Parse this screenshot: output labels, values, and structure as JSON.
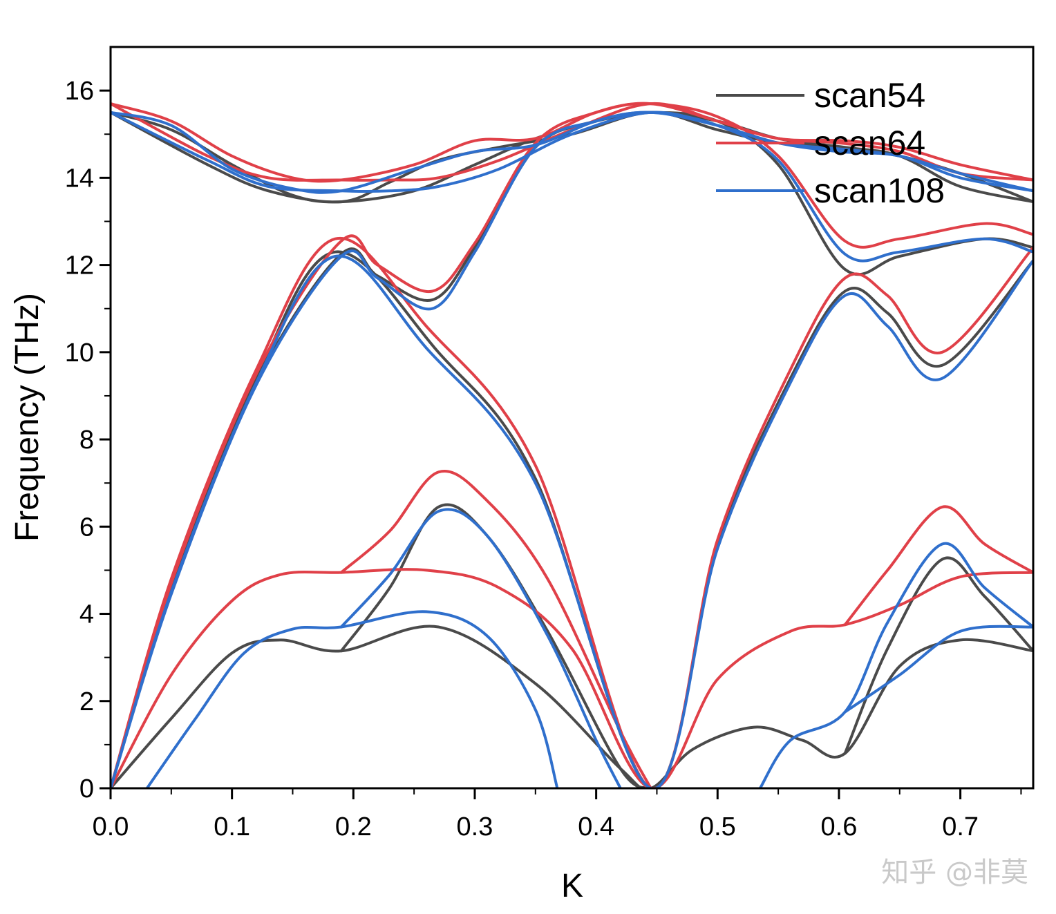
{
  "chart_data": {
    "type": "line",
    "title": "",
    "xlabel": "K",
    "ylabel": "Frequency (THz)",
    "xlim": [
      0,
      0.76
    ],
    "ylim": [
      0,
      17
    ],
    "xticks": [
      "0.0",
      "0.1",
      "0.2",
      "0.3",
      "0.4",
      "0.5",
      "0.6",
      "0.7"
    ],
    "yticks": [
      "0",
      "2",
      "4",
      "6",
      "8",
      "10",
      "12",
      "14",
      "16"
    ],
    "legend_position": "top-right",
    "colors": {
      "scan54": "#4a4a4a",
      "scan64": "#e04048",
      "scan108": "#2f6fcc"
    },
    "series": [
      {
        "name": "scan54",
        "bands": [
          [
            [
              0,
              0
            ],
            [
              0.05,
              1.6
            ],
            [
              0.1,
              3.1
            ],
            [
              0.14,
              3.4
            ],
            [
              0.19,
              3.15
            ],
            [
              0.27,
              3.7
            ],
            [
              0.35,
              2.4
            ],
            [
              0.42,
              0.45
            ],
            [
              0.445,
              0
            ],
            [
              0.48,
              0.9
            ],
            [
              0.53,
              1.4
            ],
            [
              0.57,
              1.1
            ],
            [
              0.605,
              0.8
            ],
            [
              0.65,
              2.8
            ],
            [
              0.7,
              3.4
            ],
            [
              0.76,
              3.15
            ]
          ],
          [
            [
              0,
              0
            ],
            [
              0.05,
              4.6
            ],
            [
              0.12,
              9.4
            ],
            [
              0.185,
              12.3
            ],
            [
              0.27,
              10
            ],
            [
              0.35,
              7.1
            ],
            [
              0.445,
              0
            ],
            [
              0.5,
              5.6
            ],
            [
              0.56,
              9.4
            ],
            [
              0.605,
              11.4
            ],
            [
              0.64,
              10.9
            ],
            [
              0.685,
              9.7
            ],
            [
              0.76,
              12.1
            ]
          ],
          [
            [
              0,
              0
            ],
            [
              0.05,
              4.5
            ],
            [
              0.12,
              9.3
            ],
            [
              0.19,
              12.25
            ],
            [
              0.22,
              11.75
            ],
            [
              0.265,
              11.2
            ],
            [
              0.3,
              12.4
            ],
            [
              0.35,
              14.7
            ],
            [
              0.4,
              15.3
            ],
            [
              0.445,
              15.5
            ],
            [
              0.5,
              15.3
            ],
            [
              0.55,
              14.3
            ],
            [
              0.605,
              11.9
            ],
            [
              0.65,
              12.2
            ],
            [
              0.72,
              12.6
            ],
            [
              0.76,
              12.4
            ]
          ],
          [
            [
              0,
              15.5
            ],
            [
              0.05,
              15.1
            ],
            [
              0.1,
              14.3
            ],
            [
              0.15,
              13.6
            ],
            [
              0.19,
              13.45
            ],
            [
              0.25,
              13.7
            ],
            [
              0.3,
              14.3
            ],
            [
              0.35,
              14.9
            ],
            [
              0.4,
              15.3
            ],
            [
              0.445,
              15.5
            ],
            [
              0.5,
              15.3
            ],
            [
              0.55,
              14.9
            ],
            [
              0.605,
              14.7
            ],
            [
              0.65,
              14.5
            ],
            [
              0.7,
              13.8
            ],
            [
              0.76,
              13.45
            ]
          ],
          [
            [
              0,
              15.5
            ],
            [
              0.08,
              14.3
            ],
            [
              0.13,
              13.7
            ],
            [
              0.19,
              13.45
            ],
            [
              0.23,
              13.9
            ],
            [
              0.27,
              14.4
            ],
            [
              0.32,
              14.7
            ],
            [
              0.38,
              15.0
            ],
            [
              0.445,
              15.5
            ],
            [
              0.5,
              15.1
            ],
            [
              0.55,
              14.8
            ],
            [
              0.6,
              14.7
            ],
            [
              0.65,
              14.5
            ],
            [
              0.7,
              14.1
            ],
            [
              0.76,
              13.45
            ]
          ],
          [
            [
              0.19,
              3.15
            ],
            [
              0.23,
              4.6
            ],
            [
              0.27,
              6.45
            ],
            [
              0.31,
              5.8
            ],
            [
              0.36,
              3.6
            ],
            [
              0.42,
              0.45
            ],
            [
              0.445,
              0
            ]
          ],
          [
            [
              0.605,
              0.8
            ],
            [
              0.64,
              3.2
            ],
            [
              0.685,
              5.25
            ],
            [
              0.72,
              4.4
            ],
            [
              0.76,
              3.15
            ]
          ]
        ]
      },
      {
        "name": "scan64",
        "bands": [
          [
            [
              0,
              0
            ],
            [
              0.05,
              2.6
            ],
            [
              0.1,
              4.3
            ],
            [
              0.14,
              4.9
            ],
            [
              0.19,
              4.95
            ],
            [
              0.26,
              5.0
            ],
            [
              0.32,
              4.6
            ],
            [
              0.38,
              3.2
            ],
            [
              0.445,
              0
            ],
            [
              0.5,
              2.5
            ],
            [
              0.56,
              3.6
            ],
            [
              0.605,
              3.75
            ],
            [
              0.65,
              4.2
            ],
            [
              0.7,
              4.85
            ],
            [
              0.76,
              4.95
            ]
          ],
          [
            [
              0,
              0
            ],
            [
              0.05,
              4.8
            ],
            [
              0.12,
              9.6
            ],
            [
              0.185,
              12.6
            ],
            [
              0.26,
              10.6
            ],
            [
              0.35,
              7.4
            ],
            [
              0.445,
              0
            ],
            [
              0.5,
              5.7
            ],
            [
              0.56,
              9.6
            ],
            [
              0.605,
              11.7
            ],
            [
              0.64,
              11.3
            ],
            [
              0.685,
              10.0
            ],
            [
              0.76,
              12.4
            ]
          ],
          [
            [
              0,
              0
            ],
            [
              0.05,
              4.7
            ],
            [
              0.12,
              9.5
            ],
            [
              0.19,
              12.55
            ],
            [
              0.22,
              12.0
            ],
            [
              0.265,
              11.4
            ],
            [
              0.3,
              12.5
            ],
            [
              0.35,
              14.8
            ],
            [
              0.4,
              15.5
            ],
            [
              0.445,
              15.7
            ],
            [
              0.5,
              15.4
            ],
            [
              0.55,
              14.5
            ],
            [
              0.605,
              12.55
            ],
            [
              0.65,
              12.6
            ],
            [
              0.72,
              12.95
            ],
            [
              0.76,
              12.7
            ]
          ],
          [
            [
              0,
              15.7
            ],
            [
              0.05,
              15.3
            ],
            [
              0.1,
              14.5
            ],
            [
              0.15,
              14.0
            ],
            [
              0.19,
              13.95
            ],
            [
              0.25,
              14.3
            ],
            [
              0.3,
              14.85
            ],
            [
              0.35,
              14.9
            ],
            [
              0.4,
              15.5
            ],
            [
              0.445,
              15.7
            ],
            [
              0.5,
              15.3
            ],
            [
              0.55,
              14.9
            ],
            [
              0.605,
              14.85
            ],
            [
              0.65,
              14.7
            ],
            [
              0.7,
              14.3
            ],
            [
              0.76,
              13.95
            ]
          ],
          [
            [
              0,
              15.7
            ],
            [
              0.08,
              14.5
            ],
            [
              0.13,
              14.0
            ],
            [
              0.19,
              13.95
            ],
            [
              0.23,
              13.95
            ],
            [
              0.27,
              14.0
            ],
            [
              0.32,
              14.4
            ],
            [
              0.38,
              15.1
            ],
            [
              0.445,
              15.7
            ],
            [
              0.5,
              15.3
            ],
            [
              0.55,
              14.9
            ],
            [
              0.6,
              14.8
            ],
            [
              0.65,
              14.6
            ],
            [
              0.7,
              14.1
            ],
            [
              0.76,
              13.95
            ]
          ],
          [
            [
              0.19,
              4.95
            ],
            [
              0.23,
              5.9
            ],
            [
              0.27,
              7.25
            ],
            [
              0.31,
              6.6
            ],
            [
              0.36,
              4.8
            ],
            [
              0.42,
              1.3
            ],
            [
              0.445,
              0
            ]
          ],
          [
            [
              0.605,
              3.75
            ],
            [
              0.64,
              5.0
            ],
            [
              0.685,
              6.45
            ],
            [
              0.72,
              5.6
            ],
            [
              0.76,
              4.95
            ]
          ]
        ]
      },
      {
        "name": "scan108",
        "bands": [
          [
            [
              0.03,
              0
            ],
            [
              0.07,
              1.6
            ],
            [
              0.11,
              3.1
            ],
            [
              0.15,
              3.65
            ],
            [
              0.19,
              3.7
            ],
            [
              0.26,
              4.05
            ],
            [
              0.31,
              3.5
            ],
            [
              0.35,
              1.8
            ],
            [
              0.368,
              0
            ]
          ],
          [
            [
              0,
              0
            ],
            [
              0.05,
              4.5
            ],
            [
              0.12,
              9.3
            ],
            [
              0.185,
              12.2
            ],
            [
              0.26,
              10.1
            ],
            [
              0.35,
              7.0
            ],
            [
              0.445,
              0
            ],
            [
              0.5,
              5.5
            ],
            [
              0.56,
              9.3
            ],
            [
              0.605,
              11.3
            ],
            [
              0.64,
              10.6
            ],
            [
              0.685,
              9.4
            ],
            [
              0.76,
              12.1
            ]
          ],
          [
            [
              0,
              0
            ],
            [
              0.05,
              4.45
            ],
            [
              0.12,
              9.25
            ],
            [
              0.19,
              12.2
            ],
            [
              0.22,
              11.7
            ],
            [
              0.265,
              11.0
            ],
            [
              0.3,
              12.3
            ],
            [
              0.35,
              14.7
            ],
            [
              0.4,
              15.3
            ],
            [
              0.445,
              15.5
            ],
            [
              0.5,
              15.2
            ],
            [
              0.55,
              14.4
            ],
            [
              0.605,
              12.25
            ],
            [
              0.65,
              12.3
            ],
            [
              0.72,
              12.6
            ],
            [
              0.76,
              12.3
            ]
          ],
          [
            [
              0,
              15.5
            ],
            [
              0.05,
              15.2
            ],
            [
              0.1,
              14.2
            ],
            [
              0.15,
              13.75
            ],
            [
              0.19,
              13.7
            ],
            [
              0.25,
              14.2
            ],
            [
              0.3,
              14.6
            ],
            [
              0.35,
              14.75
            ],
            [
              0.4,
              15.3
            ],
            [
              0.445,
              15.5
            ],
            [
              0.5,
              15.2
            ],
            [
              0.55,
              14.8
            ],
            [
              0.605,
              14.65
            ],
            [
              0.65,
              14.5
            ],
            [
              0.7,
              14.1
            ],
            [
              0.76,
              13.7
            ]
          ],
          [
            [
              0,
              15.5
            ],
            [
              0.08,
              14.4
            ],
            [
              0.13,
              13.8
            ],
            [
              0.19,
              13.7
            ],
            [
              0.23,
              13.7
            ],
            [
              0.27,
              13.8
            ],
            [
              0.32,
              14.2
            ],
            [
              0.38,
              15.0
            ],
            [
              0.445,
              15.5
            ],
            [
              0.5,
              15.2
            ],
            [
              0.55,
              14.8
            ],
            [
              0.6,
              14.6
            ],
            [
              0.65,
              14.5
            ],
            [
              0.7,
              14.0
            ],
            [
              0.76,
              13.7
            ]
          ],
          [
            [
              0.19,
              3.7
            ],
            [
              0.23,
              4.9
            ],
            [
              0.27,
              6.35
            ],
            [
              0.31,
              5.8
            ],
            [
              0.36,
              3.5
            ],
            [
              0.4,
              1.1
            ],
            [
              0.42,
              0
            ]
          ],
          [
            [
              0.535,
              0
            ],
            [
              0.56,
              1.1
            ],
            [
              0.605,
              1.75
            ],
            [
              0.64,
              3.8
            ],
            [
              0.685,
              5.6
            ],
            [
              0.72,
              4.6
            ],
            [
              0.76,
              3.7
            ]
          ],
          [
            [
              0.605,
              1.75
            ],
            [
              0.65,
              2.6
            ],
            [
              0.7,
              3.6
            ],
            [
              0.76,
              3.7
            ]
          ]
        ]
      }
    ]
  },
  "watermark": "知乎 @非莫"
}
